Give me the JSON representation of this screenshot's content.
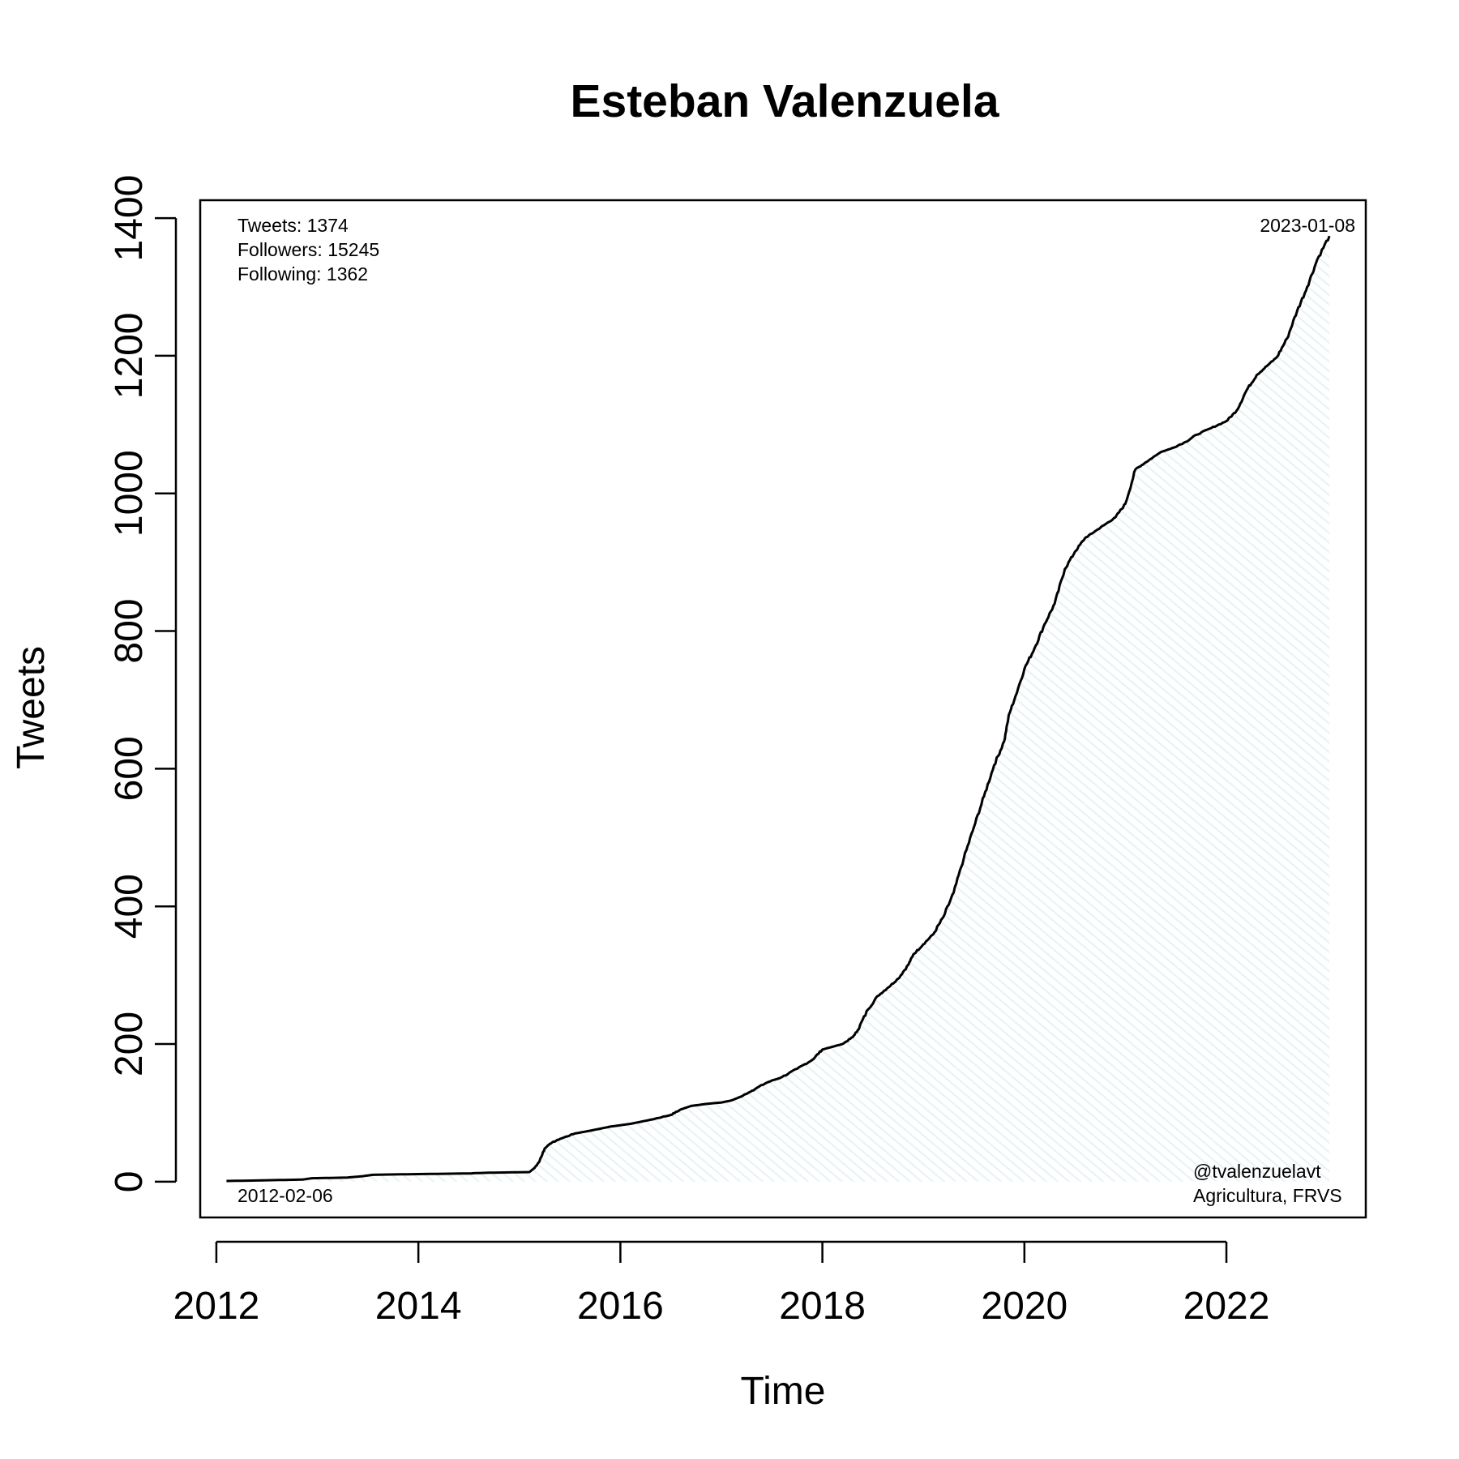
{
  "chart_data": {
    "type": "area",
    "title": "Esteban Valenzuela",
    "xlabel": "Time",
    "ylabel": "Tweets",
    "xlim": [
      2011.84,
      2023.38
    ],
    "ylim": [
      -52,
      1426
    ],
    "x_ticks": [
      2012,
      2014,
      2016,
      2018,
      2020,
      2022
    ],
    "x_tick_labels": [
      "2012",
      "2014",
      "2016",
      "2018",
      "2020",
      "2022"
    ],
    "y_ticks": [
      0,
      200,
      400,
      600,
      800,
      1000,
      1200,
      1400
    ],
    "y_tick_labels": [
      "0",
      "200",
      "400",
      "600",
      "800",
      "1000",
      "1200",
      "1400"
    ],
    "grid": false,
    "legend": "none",
    "fill_color": "#e8f3f6",
    "line_color": "#000000",
    "stats": [
      "Tweets: 1374",
      "Followers: 15245",
      "Following: 1362"
    ],
    "start_label": "2012-02-06",
    "end_label": "2023-01-08",
    "credit": [
      "@tvalenzuelavt",
      "Agricultura, FRVS"
    ],
    "series": [
      {
        "x": [
          2012.1,
          2012.5,
          2012.85,
          2012.95,
          2013.3,
          2013.45,
          2013.55,
          2014.0,
          2014.5,
          2014.7,
          2015.1,
          2015.15,
          2015.2,
          2015.25,
          2015.3,
          2015.4,
          2015.55,
          2015.7,
          2015.9,
          2016.1,
          2016.3,
          2016.5,
          2016.6,
          2016.7,
          2016.85,
          2017.0,
          2017.1,
          2017.2,
          2017.3,
          2017.45,
          2017.6,
          2017.75,
          2017.9,
          2018.0,
          2018.1,
          2018.2,
          2018.3,
          2018.35,
          2018.45,
          2018.55,
          2018.65,
          2018.75,
          2018.85,
          2018.9,
          2019.0,
          2019.1,
          2019.2,
          2019.3,
          2019.4,
          2019.5,
          2019.6,
          2019.7,
          2019.8,
          2019.85,
          2019.9,
          2020.0,
          2020.1,
          2020.2,
          2020.3,
          2020.4,
          2020.5,
          2020.6,
          2020.7,
          2020.8,
          2020.9,
          2021.0,
          2021.1,
          2021.2,
          2021.3,
          2021.35,
          2021.45,
          2021.6,
          2021.7,
          2021.85,
          2022.0,
          2022.1,
          2022.2,
          2022.3,
          2022.4,
          2022.5,
          2022.6,
          2022.7,
          2022.8,
          2022.9,
          2023.02
        ],
        "y": [
          1,
          2,
          3,
          5,
          6,
          8,
          10,
          11,
          12,
          13,
          14,
          20,
          30,
          48,
          55,
          62,
          70,
          74,
          80,
          84,
          90,
          97,
          105,
          110,
          113,
          115,
          118,
          124,
          132,
          144,
          152,
          164,
          177,
          192,
          196,
          200,
          210,
          220,
          250,
          270,
          282,
          295,
          315,
          330,
          345,
          360,
          385,
          420,
          470,
          515,
          560,
          605,
          640,
          680,
          700,
          745,
          775,
          810,
          840,
          890,
          915,
          935,
          945,
          955,
          965,
          985,
          1035,
          1045,
          1055,
          1060,
          1065,
          1075,
          1085,
          1095,
          1105,
          1120,
          1150,
          1172,
          1185,
          1198,
          1225,
          1265,
          1300,
          1340,
          1374
        ]
      }
    ]
  }
}
